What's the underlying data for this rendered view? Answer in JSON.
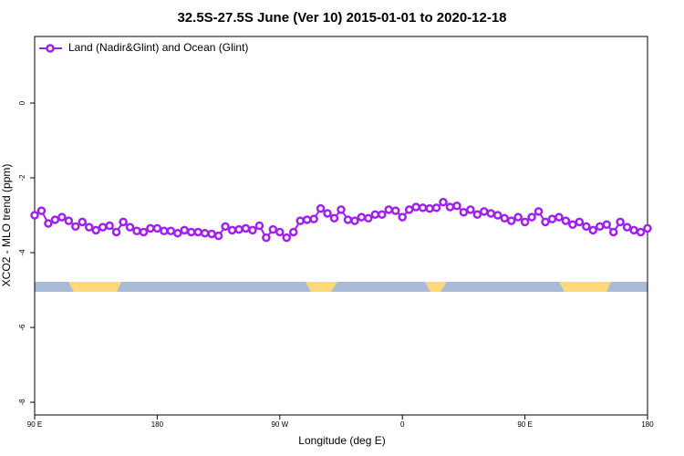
{
  "chart_data": {
    "type": "line",
    "title": "32.5S-27.5S June (Ver 10)   2015-01-01 to 2020-12-18",
    "xlabel": "Longitude (deg E)",
    "ylabel": "XCO2 - MLO trend (ppm)",
    "x": [
      90,
      95,
      100,
      105,
      110,
      115,
      120,
      125,
      130,
      135,
      140,
      145,
      150,
      155,
      160,
      165,
      170,
      175,
      180,
      185,
      190,
      195,
      200,
      205,
      210,
      215,
      220,
      225,
      230,
      235,
      240,
      245,
      250,
      255,
      260,
      265,
      270,
      275,
      280,
      285,
      290,
      295,
      300,
      305,
      310,
      315,
      320,
      325,
      330,
      335,
      340,
      345,
      350,
      355,
      360,
      365,
      370,
      375,
      380,
      385,
      390,
      395,
      400,
      405,
      410,
      415,
      420,
      425,
      430,
      435,
      440,
      445,
      450,
      455,
      460,
      465,
      470,
      475,
      480,
      485,
      490,
      495,
      500,
      505,
      510,
      515,
      520,
      525,
      530,
      535,
      540
    ],
    "series": [
      {
        "name": "Land (Nadir&Glint) and Ocean (Glint)",
        "color": "#a020f0",
        "values": [
          -3.0,
          -2.88,
          -3.22,
          -3.12,
          -3.05,
          -3.15,
          -3.3,
          -3.18,
          -3.32,
          -3.4,
          -3.32,
          -3.28,
          -3.45,
          -3.18,
          -3.32,
          -3.42,
          -3.45,
          -3.35,
          -3.35,
          -3.42,
          -3.42,
          -3.48,
          -3.4,
          -3.45,
          -3.45,
          -3.48,
          -3.5,
          -3.55,
          -3.3,
          -3.4,
          -3.38,
          -3.35,
          -3.4,
          -3.28,
          -3.6,
          -3.38,
          -3.45,
          -3.6,
          -3.45,
          -3.15,
          -3.12,
          -3.1,
          -2.82,
          -2.95,
          -3.08,
          -2.85,
          -3.12,
          -3.15,
          -3.05,
          -3.08,
          -2.98,
          -2.98,
          -2.85,
          -2.88,
          -3.05,
          -2.85,
          -2.78,
          -2.8,
          -2.82,
          -2.8,
          -2.65,
          -2.78,
          -2.75,
          -2.92,
          -2.85,
          -2.98,
          -2.9,
          -2.95,
          -3.0,
          -3.08,
          -3.15,
          -3.05,
          -3.18,
          -3.05,
          -2.9,
          -3.18,
          -3.1,
          -3.05,
          -3.15,
          -3.25,
          -3.18,
          -3.3,
          -3.4,
          -3.3,
          -3.25,
          -3.45,
          -3.18,
          -3.32,
          -3.4,
          -3.45,
          -3.35
        ]
      }
    ],
    "xlim": [
      90,
      540
    ],
    "xticks": [
      {
        "value": 90,
        "label": "90 E"
      },
      {
        "value": 180,
        "label": "180"
      },
      {
        "value": 270,
        "label": "90 W"
      },
      {
        "value": 360,
        "label": "0"
      },
      {
        "value": 450,
        "label": "90 E"
      },
      {
        "value": 540,
        "label": "180"
      }
    ],
    "ylim": [
      -8.34,
      1.78
    ],
    "yticks": [
      0,
      -2,
      -4,
      -6,
      -8
    ],
    "legend": "top-left"
  }
}
